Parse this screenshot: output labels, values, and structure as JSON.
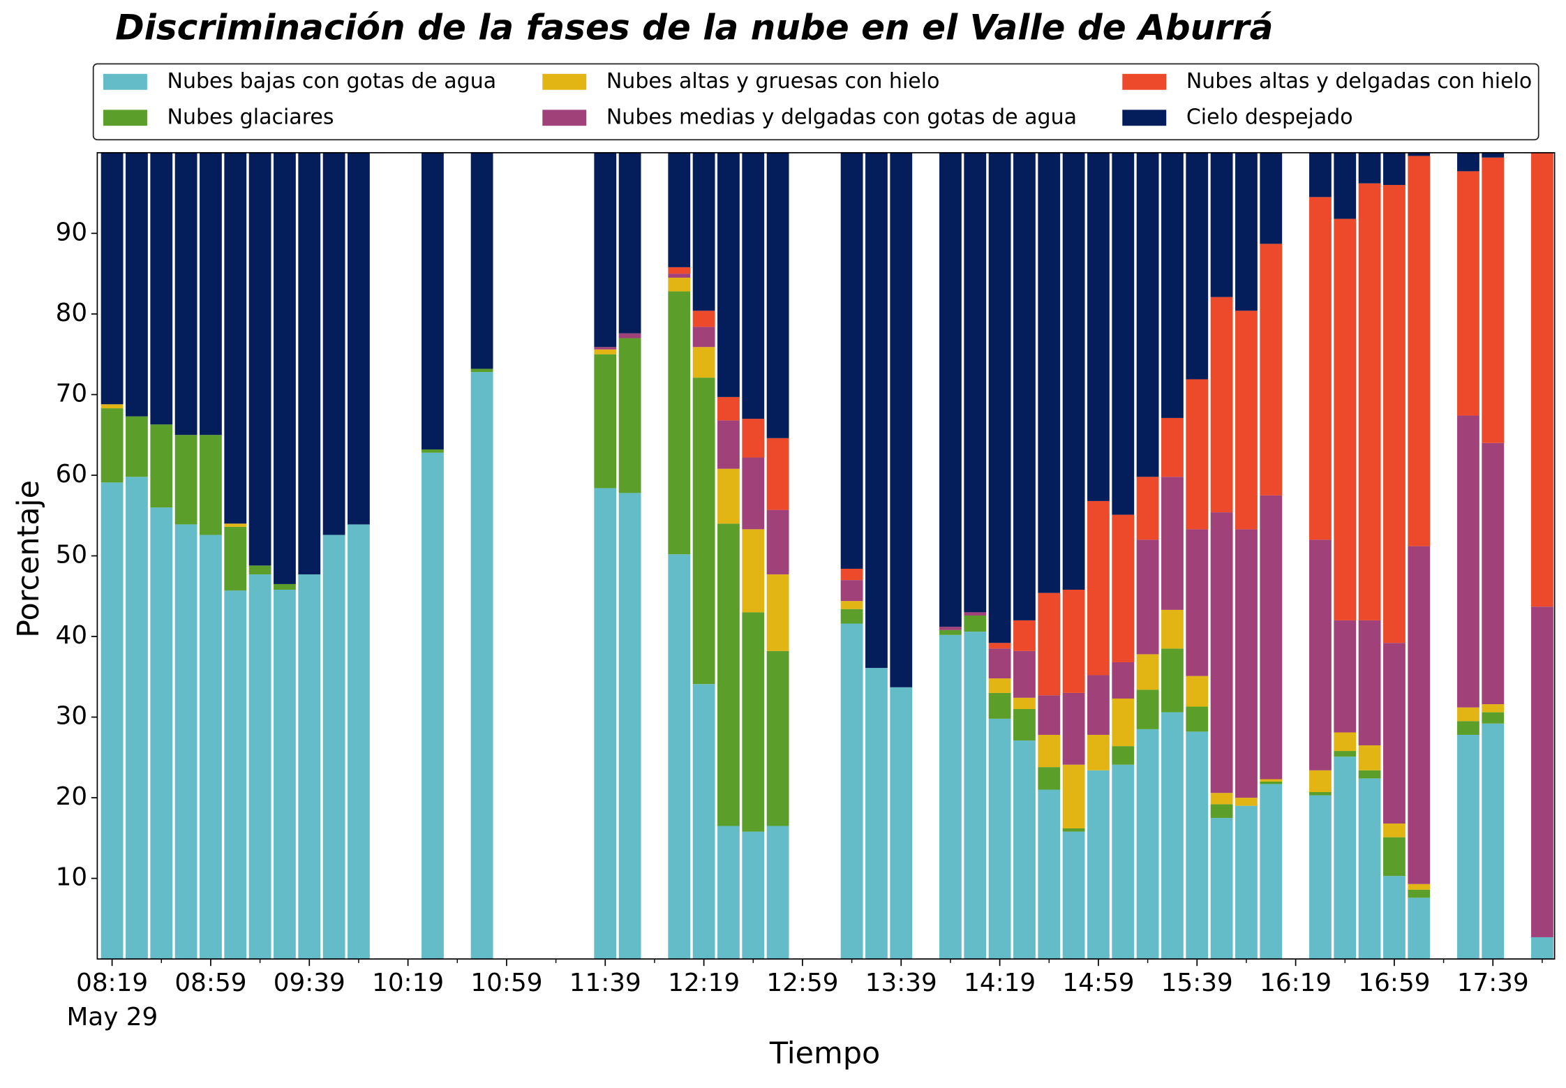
{
  "chart_data": {
    "type": "stacked_bar",
    "title": "Discriminación de la fases de la nube en el Valle de Aburrá",
    "x_label": "Tiempo",
    "y_label": "Porcentaje",
    "date_label": "May 29",
    "x": [
      "08:19",
      "08:29",
      "08:39",
      "08:49",
      "08:59",
      "09:09",
      "09:19",
      "09:29",
      "09:39",
      "09:49",
      "09:59",
      "10:29",
      "10:49",
      "11:39",
      "11:49",
      "12:09",
      "12:19",
      "12:29",
      "12:39",
      "12:49",
      "13:19",
      "13:29",
      "13:39",
      "13:59",
      "14:09",
      "14:19",
      "14:29",
      "14:39",
      "14:49",
      "14:59",
      "15:09",
      "15:19",
      "15:29",
      "15:39",
      "15:49",
      "15:59",
      "16:09",
      "16:29",
      "16:39",
      "16:49",
      "16:59",
      "17:09",
      "17:29",
      "17:39",
      "17:59"
    ],
    "series": [
      {
        "name": "Nubes bajas con gotas de agua",
        "color": "#64bcc8",
        "values": [
          59.1,
          59.8,
          56.0,
          53.9,
          52.6,
          45.7,
          47.7,
          45.8,
          47.7,
          52.6,
          53.9,
          62.8,
          72.8,
          58.4,
          57.8,
          50.2,
          34.1,
          16.5,
          15.8,
          16.5,
          41.6,
          36.1,
          33.7,
          40.2,
          40.6,
          29.8,
          27.1,
          21.0,
          15.8,
          23.4,
          24.1,
          28.5,
          30.6,
          28.2,
          17.5,
          19.0,
          21.7,
          20.3,
          25.1,
          22.4,
          10.3,
          7.6,
          27.8,
          29.2,
          2.7
        ]
      },
      {
        "name": "Nubes glaciares",
        "color": "#5b9e2a",
        "values": [
          9.2,
          7.5,
          10.3,
          11.1,
          12.4,
          7.9,
          1.1,
          0.7,
          0,
          0,
          0,
          0.4,
          0.4,
          16.6,
          19.2,
          32.6,
          38.0,
          37.5,
          27.2,
          21.7,
          1.8,
          0,
          0,
          0.6,
          2.0,
          3.2,
          3.9,
          2.8,
          0.4,
          0,
          2.3,
          4.9,
          7.9,
          3.1,
          1.7,
          0,
          0.3,
          0.4,
          0.7,
          1.0,
          4.8,
          1.0,
          1.7,
          1.4,
          0
        ]
      },
      {
        "name": "Nubes altas y gruesas con hielo",
        "color": "#e2b514",
        "values": [
          0.5,
          0,
          0,
          0,
          0,
          0.4,
          0,
          0,
          0,
          0,
          0,
          0,
          0,
          0.6,
          0,
          1.7,
          3.8,
          6.8,
          10.3,
          9.5,
          1.0,
          0,
          0,
          0,
          0,
          1.8,
          1.4,
          4.0,
          7.9,
          4.4,
          5.9,
          4.4,
          4.8,
          3.8,
          1.4,
          1.0,
          0.3,
          2.7,
          2.3,
          3.1,
          1.7,
          0.7,
          1.7,
          1.0,
          0
        ]
      },
      {
        "name": "Nubes medias y delgadas con gotas de agua",
        "color": "#a0417a",
        "values": [
          0,
          0,
          0,
          0,
          0,
          0,
          0,
          0,
          0,
          0,
          0,
          0,
          0,
          0.3,
          0.6,
          0.5,
          2.5,
          6.0,
          8.9,
          8.0,
          2.6,
          0,
          0,
          0.4,
          0.4,
          3.7,
          5.8,
          4.9,
          8.9,
          7.4,
          4.5,
          14.2,
          16.5,
          18.2,
          34.8,
          33.3,
          35.2,
          28.6,
          13.9,
          15.5,
          22.4,
          41.9,
          36.2,
          32.4,
          41.0
        ]
      },
      {
        "name": "Nubes altas y delgadas con hielo",
        "color": "#ec4a2b",
        "values": [
          0,
          0,
          0,
          0,
          0,
          0,
          0,
          0,
          0,
          0,
          0,
          0,
          0,
          0,
          0,
          0.8,
          2.0,
          2.9,
          4.8,
          8.9,
          1.4,
          0,
          0,
          0,
          0,
          0.7,
          3.8,
          12.7,
          12.8,
          21.6,
          18.3,
          7.8,
          7.3,
          18.6,
          26.7,
          27.1,
          31.2,
          42.5,
          49.8,
          54.2,
          56.8,
          48.4,
          30.3,
          35.4,
          56.3
        ]
      },
      {
        "name": "Cielo despejado",
        "color": "#041e5c",
        "values": [
          31.2,
          32.7,
          33.7,
          35.0,
          35.0,
          46.0,
          51.2,
          53.5,
          52.3,
          47.4,
          46.1,
          36.8,
          26.8,
          24.1,
          22.4,
          14.2,
          19.6,
          30.3,
          33.0,
          35.4,
          51.6,
          63.9,
          66.3,
          58.8,
          57.0,
          60.8,
          58.0,
          54.6,
          54.2,
          43.2,
          44.9,
          40.2,
          32.9,
          28.1,
          17.9,
          19.6,
          11.3,
          5.5,
          8.2,
          3.8,
          4.0,
          0.4,
          2.3,
          0.6,
          0
        ]
      }
    ],
    "xlim": [
      "08:13",
      "18:04"
    ],
    "xticks": [
      "08:19",
      "08:59",
      "09:39",
      "10:19",
      "10:59",
      "11:39",
      "12:19",
      "12:59",
      "13:39",
      "14:19",
      "14:59",
      "15:39",
      "16:19",
      "16:59",
      "17:39"
    ],
    "xticks_minor": [
      "08:39",
      "09:19",
      "09:59",
      "10:39",
      "11:19",
      "11:59",
      "12:39",
      "13:19",
      "13:59",
      "14:39",
      "15:19",
      "15:59",
      "16:39",
      "17:19",
      "17:59"
    ],
    "ylim": [
      0,
      100
    ],
    "yticks": [
      10,
      20,
      30,
      40,
      50,
      60,
      70,
      80,
      90
    ],
    "legend": "top"
  }
}
